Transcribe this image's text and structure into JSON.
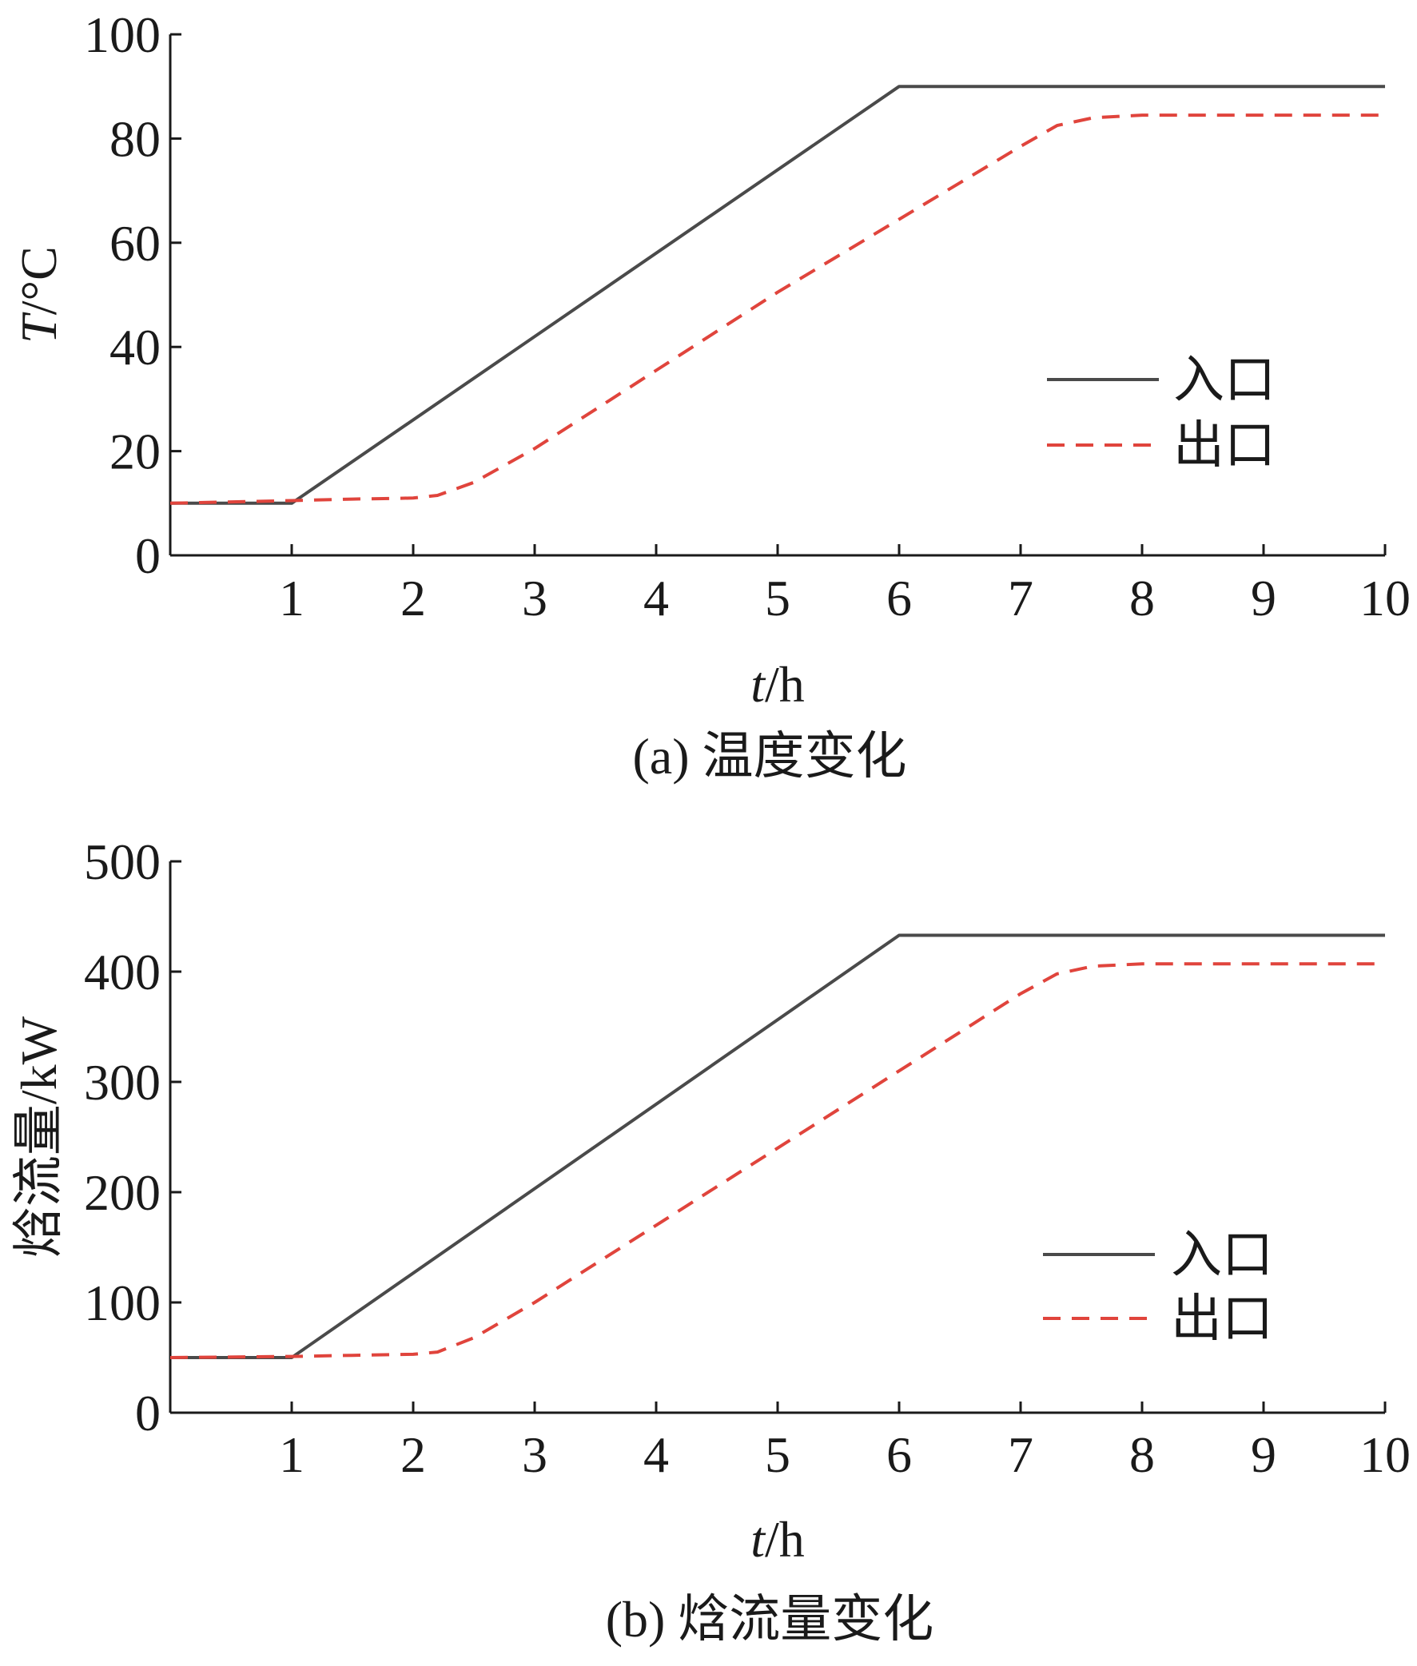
{
  "chart_data": [
    {
      "id": "a",
      "type": "line",
      "caption": "(a) 温度变化",
      "xlabel_italic": "t",
      "xlabel_rest": "/h",
      "ylabel_italic": "T",
      "ylabel_rest": "/°C",
      "xlim": [
        0,
        10
      ],
      "ylim": [
        0,
        100
      ],
      "xticks": [
        1,
        2,
        3,
        4,
        5,
        6,
        7,
        8,
        9,
        10
      ],
      "yticks": [
        0,
        20,
        40,
        60,
        80,
        100
      ],
      "legend_position": "center-right",
      "series": [
        {
          "name": "入口",
          "style": "solid",
          "color": "#4a4a4a",
          "x": [
            0,
            1,
            6,
            10
          ],
          "y": [
            10,
            10,
            90,
            90
          ]
        },
        {
          "name": "出口",
          "style": "dashed",
          "color": "#e0443c",
          "x": [
            0,
            1,
            1.5,
            2,
            2.2,
            2.5,
            3,
            3.5,
            4,
            4.5,
            5,
            5.5,
            6,
            6.5,
            7,
            7.3,
            7.6,
            8,
            9,
            10
          ],
          "y": [
            10,
            10.5,
            10.8,
            11,
            11.5,
            14,
            20.5,
            28,
            35.5,
            43,
            50.5,
            57.5,
            64.5,
            71.5,
            78.5,
            82.5,
            84,
            84.5,
            84.5,
            84.5
          ]
        }
      ]
    },
    {
      "id": "b",
      "type": "line",
      "caption": "(b) 焓流量变化",
      "xlabel_italic": "t",
      "xlabel_rest": "/h",
      "ylabel_italic": "",
      "ylabel_rest": "焓流量/kW",
      "xlim": [
        0,
        10
      ],
      "ylim": [
        0,
        500
      ],
      "xticks": [
        1,
        2,
        3,
        4,
        5,
        6,
        7,
        8,
        9,
        10
      ],
      "yticks": [
        0,
        100,
        200,
        300,
        400,
        500
      ],
      "legend_position": "center-right",
      "series": [
        {
          "name": "入口",
          "style": "solid",
          "color": "#4a4a4a",
          "x": [
            0,
            1,
            6,
            10
          ],
          "y": [
            50,
            50,
            433,
            433
          ]
        },
        {
          "name": "出口",
          "style": "dashed",
          "color": "#e0443c",
          "x": [
            0,
            1,
            1.5,
            2,
            2.2,
            2.5,
            3,
            3.5,
            4,
            4.5,
            5,
            5.5,
            6,
            6.5,
            7,
            7.3,
            7.6,
            8,
            9,
            10
          ],
          "y": [
            50,
            51,
            52,
            53,
            55,
            68,
            100,
            135,
            170,
            205,
            240,
            275,
            310,
            345,
            380,
            398,
            405,
            407,
            407,
            407
          ]
        }
      ]
    }
  ]
}
